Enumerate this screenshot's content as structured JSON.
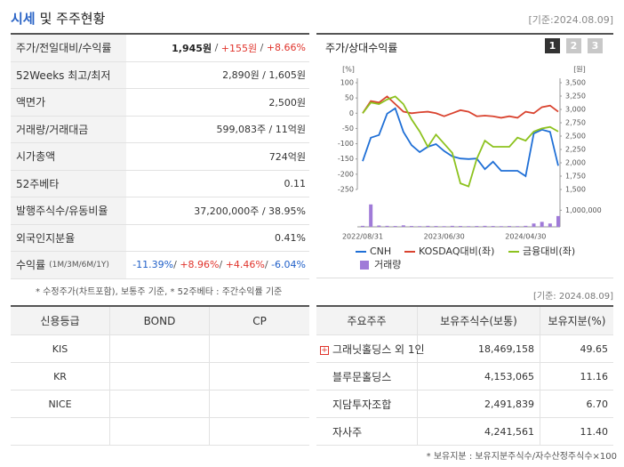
{
  "header": {
    "title_highlight": "시세",
    "title": "및 주주현황",
    "date": "[기준:2024.08.09]"
  },
  "quote_table": {
    "rows": [
      {
        "label": "주가/전일대비/수익률",
        "value": [
          {
            "text": "1,945원",
            "color": "#222222",
            "bold": true
          },
          {
            "text": " / ",
            "color": "#555555"
          },
          {
            "text": "+155원",
            "color": "#e0342c"
          },
          {
            "text": " / ",
            "color": "#555555"
          },
          {
            "text": "+8.66%",
            "color": "#e0342c"
          }
        ]
      },
      {
        "label": "52Weeks 최고/최저",
        "value": [
          {
            "text": "2,890원 / 1,605원",
            "color": "#333333"
          }
        ]
      },
      {
        "label": "액면가",
        "value": [
          {
            "text": "2,500원",
            "color": "#333333"
          }
        ]
      },
      {
        "label": "거래량/거래대금",
        "value": [
          {
            "text": "599,083주 / 11억원",
            "color": "#333333"
          }
        ]
      },
      {
        "label": "시가총액",
        "value": [
          {
            "text": "724억원",
            "color": "#333333"
          }
        ]
      },
      {
        "label": "52주베타",
        "value": [
          {
            "text": "0.11",
            "color": "#333333"
          }
        ]
      },
      {
        "label": "발행주식수/유동비율",
        "value": [
          {
            "text": "37,200,000주 / 38.95%",
            "color": "#333333"
          }
        ]
      },
      {
        "label": "외국인지분율",
        "value": [
          {
            "text": "0.41%",
            "color": "#333333"
          }
        ]
      },
      {
        "label": "수익률",
        "sublabel": "(1M/3M/6M/1Y)",
        "value": [
          {
            "text": "-11.39%",
            "color": "#1f5fc8"
          },
          {
            "text": "/ ",
            "color": "#555555"
          },
          {
            "text": "+8.96%",
            "color": "#e0342c"
          },
          {
            "text": "/ ",
            "color": "#555555"
          },
          {
            "text": "+4.46%",
            "color": "#e0342c"
          },
          {
            "text": "/ ",
            "color": "#555555"
          },
          {
            "text": "-6.04%",
            "color": "#1f5fc8"
          }
        ]
      }
    ]
  },
  "chart_panel": {
    "title": "주가/상대수익률",
    "tabs": [
      "1",
      "2",
      "3"
    ]
  },
  "chart_data": {
    "type": "line",
    "categories": [
      "2022/08/31",
      null,
      null,
      null,
      null,
      null,
      null,
      null,
      null,
      null,
      "2023/06/30",
      null,
      null,
      null,
      null,
      null,
      null,
      null,
      null,
      null,
      "2024/04/30",
      null,
      null,
      null,
      null
    ],
    "ylabel": "[%]",
    "ylim": [
      -250,
      100
    ],
    "yticks": [
      -250,
      -200,
      -150,
      -100,
      -50,
      0,
      50,
      100
    ],
    "y2label": "[원]",
    "y2lim": [
      1500,
      3500
    ],
    "y2ticks": [
      {
        "value": 1500,
        "label": "1,500"
      },
      {
        "value": 1750,
        "label": "1,750"
      },
      {
        "value": 2000,
        "label": "2,000"
      },
      {
        "value": 2250,
        "label": "2,250"
      },
      {
        "value": 2500,
        "label": "2,500"
      },
      {
        "value": 2750,
        "label": "2,750"
      },
      {
        "value": 3000,
        "label": "3,000"
      },
      {
        "value": 3250,
        "label": "3,250"
      },
      {
        "value": 3500,
        "label": "3,500"
      }
    ],
    "y3lim": [
      0,
      1500000
    ],
    "y3ticks": [
      {
        "value": 1000000,
        "label": "1,000,000"
      }
    ],
    "series": [
      {
        "name": "CNH",
        "color": "#1f6fd6",
        "axis": "y2",
        "values": [
          2030,
          2470,
          2520,
          2920,
          3020,
          2580,
          2330,
          2200,
          2300,
          2350,
          2220,
          2120,
          2080,
          2070,
          2080,
          1880,
          2020,
          1850,
          1850,
          1850,
          1750,
          2550,
          2620,
          2580,
          1945
        ]
      },
      {
        "name": "KOSDAQ대비(좌)",
        "color": "#d9432f",
        "values": [
          0,
          40,
          35,
          55,
          30,
          5,
          0,
          3,
          5,
          0,
          -10,
          0,
          10,
          5,
          -10,
          -8,
          -10,
          -15,
          -10,
          -15,
          5,
          0,
          20,
          25,
          5
        ]
      },
      {
        "name": "금융대비(좌)",
        "color": "#8dc21f",
        "values": [
          0,
          35,
          30,
          45,
          55,
          30,
          -20,
          -60,
          -110,
          -70,
          -100,
          -130,
          -230,
          -240,
          -150,
          -90,
          -110,
          -110,
          -110,
          -80,
          -90,
          -60,
          -50,
          -45,
          -60
        ]
      },
      {
        "name": "거래량",
        "color": "#a07bd8",
        "type": "bar",
        "axis": "y3",
        "values": [
          60000,
          1350000,
          80000,
          60000,
          50000,
          90000,
          50000,
          40000,
          60000,
          50000,
          40000,
          60000,
          50000,
          40000,
          50000,
          60000,
          50000,
          40000,
          50000,
          40000,
          60000,
          200000,
          300000,
          200000,
          650000
        ]
      }
    ]
  },
  "footnote": "* 수정주가(차트포함), 보통주 기준, * 52주베타 : 주간수익률 기준",
  "date2": "[기준: 2024.08.09]",
  "credit_table": {
    "headers": [
      "신용등급",
      "BOND",
      "CP"
    ],
    "rows": [
      [
        "KIS"
      ],
      [
        "KR"
      ],
      [
        "NICE"
      ]
    ]
  },
  "holders_table": {
    "headers": [
      "주요주주",
      "보유주식수(보통)",
      "보유지분(%)"
    ],
    "rows": [
      [
        "그래닛홀딩스 외 1인",
        "18,469,158",
        "49.65"
      ],
      [
        "블루문홀딩스",
        "4,153,065",
        "11.16"
      ],
      [
        "지담투자조합",
        "2,491,839",
        "6.70"
      ],
      [
        "자사주",
        "4,241,561",
        "11.40"
      ]
    ]
  },
  "holders_note": "* 보유지분 : 보유지분주식수/자수산정주식수×100"
}
